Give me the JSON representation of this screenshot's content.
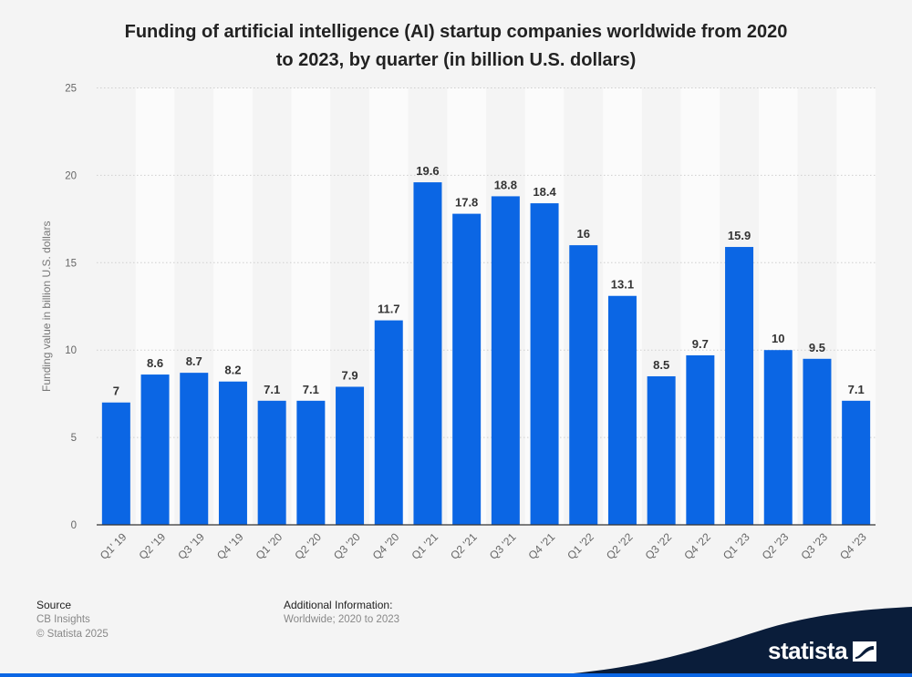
{
  "title_lines": [
    "Funding of artificial intelligence (AI) startup companies worldwide from 2020",
    "to 2023, by quarter (in billion U.S. dollars)"
  ],
  "chart_data": {
    "type": "bar",
    "title": "Funding of artificial intelligence (AI) startup companies worldwide from 2020 to 2023, by quarter (in billion U.S. dollars)",
    "xlabel": "",
    "ylabel": "Funding value in billion U.S. dollars",
    "ylim": [
      0,
      25
    ],
    "yticks": [
      0,
      5,
      10,
      15,
      20,
      25
    ],
    "grid": true,
    "categories": [
      "Q1' 19",
      "Q2 '19",
      "Q3 '19",
      "Q4 '19",
      "Q1 '20",
      "Q2 '20",
      "Q3 '20",
      "Q4 '20",
      "Q1 '21",
      "Q2 '21",
      "Q3 '21",
      "Q4 '21",
      "Q1 '22",
      "Q2 '22",
      "Q3 '22",
      "Q4 '22",
      "Q1 '23",
      "Q2 '23",
      "Q3 '23",
      "Q4 '23"
    ],
    "values": [
      7,
      8.6,
      8.7,
      8.2,
      7.1,
      7.1,
      7.9,
      11.7,
      19.6,
      17.8,
      18.8,
      18.4,
      16,
      13.1,
      8.5,
      9.7,
      15.9,
      10,
      9.5,
      7.1
    ],
    "value_labels": [
      "7",
      "8.6",
      "8.7",
      "8.2",
      "7.1",
      "7.1",
      "7.9",
      "11.7",
      "19.6",
      "17.8",
      "18.8",
      "18.4",
      "16",
      "13.1",
      "8.5",
      "9.7",
      "15.9",
      "10",
      "9.5",
      "7.1"
    ],
    "bar_color": "#0b66e4"
  },
  "footer": {
    "source_heading": "Source",
    "source_name": "CB Insights",
    "copyright": "© Statista 2025",
    "additional_heading": "Additional Information:",
    "additional_text": "Worldwide; 2020 to 2023"
  },
  "brand": {
    "name": "statista",
    "wave_color": "#0a1d3a",
    "accent_color": "#0b66e4"
  }
}
